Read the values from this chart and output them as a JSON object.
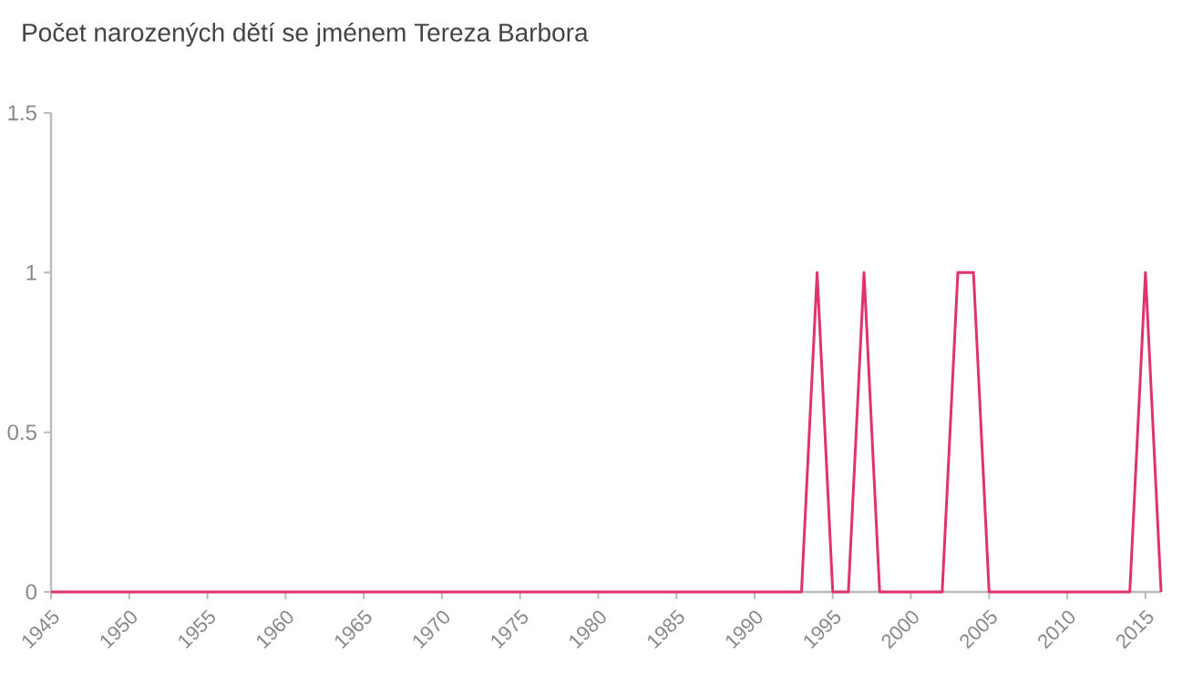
{
  "chart_data": {
    "type": "line",
    "title": "Počet narozených dětí se jménem Tereza Barbora",
    "x": [
      1945,
      1993,
      1994,
      1995,
      1996,
      1997,
      1998,
      2002,
      2003,
      2004,
      2005,
      2014,
      2015,
      2016
    ],
    "series": [
      {
        "color": "#e0336a",
        "values": [
          0,
          0,
          1,
          0,
          0,
          1,
          0,
          0,
          1,
          1,
          0,
          0,
          1,
          0
        ]
      }
    ],
    "xlim": [
      1945,
      2016
    ],
    "xticks": [
      1945,
      1950,
      1955,
      1960,
      1965,
      1970,
      1975,
      1980,
      1985,
      1990,
      1995,
      2000,
      2005,
      2010,
      2015
    ],
    "ylim": [
      0,
      1.5
    ],
    "yticks": [
      0,
      0.5,
      1,
      1.5
    ],
    "marker": "none",
    "line_style": "solid"
  }
}
